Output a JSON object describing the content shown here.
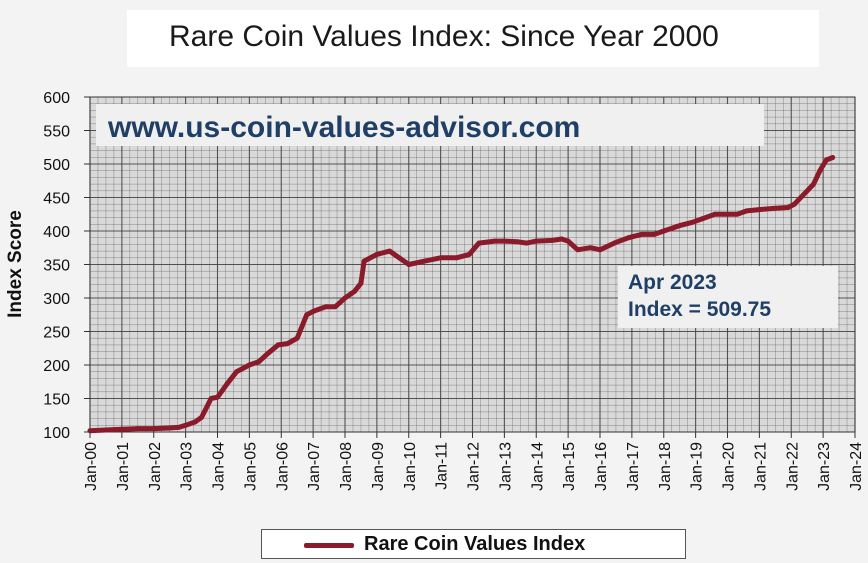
{
  "title": "Rare Coin Values Index: Since Year 2000",
  "chart_data": {
    "type": "line",
    "title": "Rare Coin Values Index: Since Year 2000",
    "ylabel": "Index Score",
    "xlabel": "",
    "ylim": [
      100,
      600
    ],
    "yticks": [
      100,
      150,
      200,
      250,
      300,
      350,
      400,
      450,
      500,
      550,
      600
    ],
    "xlim": [
      2000,
      2024
    ],
    "xtick_labels": [
      "Jan-00",
      "Jan-01",
      "Jan-02",
      "Jan-03",
      "Jan-04",
      "Jan-05",
      "Jan-06",
      "Jan-07",
      "Jan-08",
      "Jan-09",
      "Jan-10",
      "Jan-11",
      "Jan-12",
      "Jan-13",
      "Jan-14",
      "Jan-15",
      "Jan-16",
      "Jan-17",
      "Jan-18",
      "Jan-19",
      "Jan-20",
      "Jan-21",
      "Jan-22",
      "Jan-23",
      "Jan-24"
    ],
    "grid": true,
    "legend_position": "bottom",
    "series": [
      {
        "name": "Rare Coin Values Index",
        "color": "#8b1a2b",
        "x": [
          2000.0,
          2000.5,
          2001.0,
          2001.5,
          2002.0,
          2002.5,
          2002.8,
          2003.0,
          2003.3,
          2003.5,
          2003.8,
          2004.0,
          2004.3,
          2004.6,
          2005.0,
          2005.3,
          2005.6,
          2005.9,
          2006.2,
          2006.5,
          2006.8,
          2007.0,
          2007.4,
          2007.7,
          2008.0,
          2008.3,
          2008.5,
          2008.6,
          2009.0,
          2009.4,
          2009.7,
          2010.0,
          2010.5,
          2011.0,
          2011.5,
          2011.9,
          2012.2,
          2012.7,
          2013.0,
          2013.4,
          2013.7,
          2014.0,
          2014.5,
          2014.8,
          2015.0,
          2015.3,
          2015.7,
          2016.0,
          2016.5,
          2016.9,
          2017.3,
          2017.7,
          2018.0,
          2018.5,
          2018.9,
          2019.2,
          2019.6,
          2020.0,
          2020.3,
          2020.6,
          2021.0,
          2021.5,
          2021.9,
          2022.1,
          2022.4,
          2022.7,
          2022.9,
          2023.1,
          2023.3
        ],
        "values": [
          102,
          103,
          104,
          105,
          105,
          106,
          107,
          110,
          115,
          122,
          150,
          152,
          172,
          190,
          200,
          205,
          218,
          230,
          232,
          240,
          275,
          280,
          287,
          287,
          300,
          310,
          322,
          355,
          365,
          370,
          360,
          350,
          355,
          360,
          360,
          365,
          382,
          385,
          385,
          384,
          382,
          385,
          386,
          388,
          385,
          372,
          375,
          372,
          383,
          390,
          395,
          395,
          400,
          408,
          413,
          418,
          425,
          425,
          425,
          430,
          432,
          434,
          435,
          440,
          455,
          470,
          490,
          506,
          509.75
        ]
      }
    ],
    "annotations": [
      {
        "line1": "Apr 2023",
        "line2": "Index = 509.75"
      }
    ],
    "watermark": "www.us-coin-values-advisor.com"
  },
  "colors": {
    "line": "#8b1a2b",
    "grid": "#444444",
    "plot_bg": "#d9d9d9",
    "watermark": "#1f3f66"
  }
}
